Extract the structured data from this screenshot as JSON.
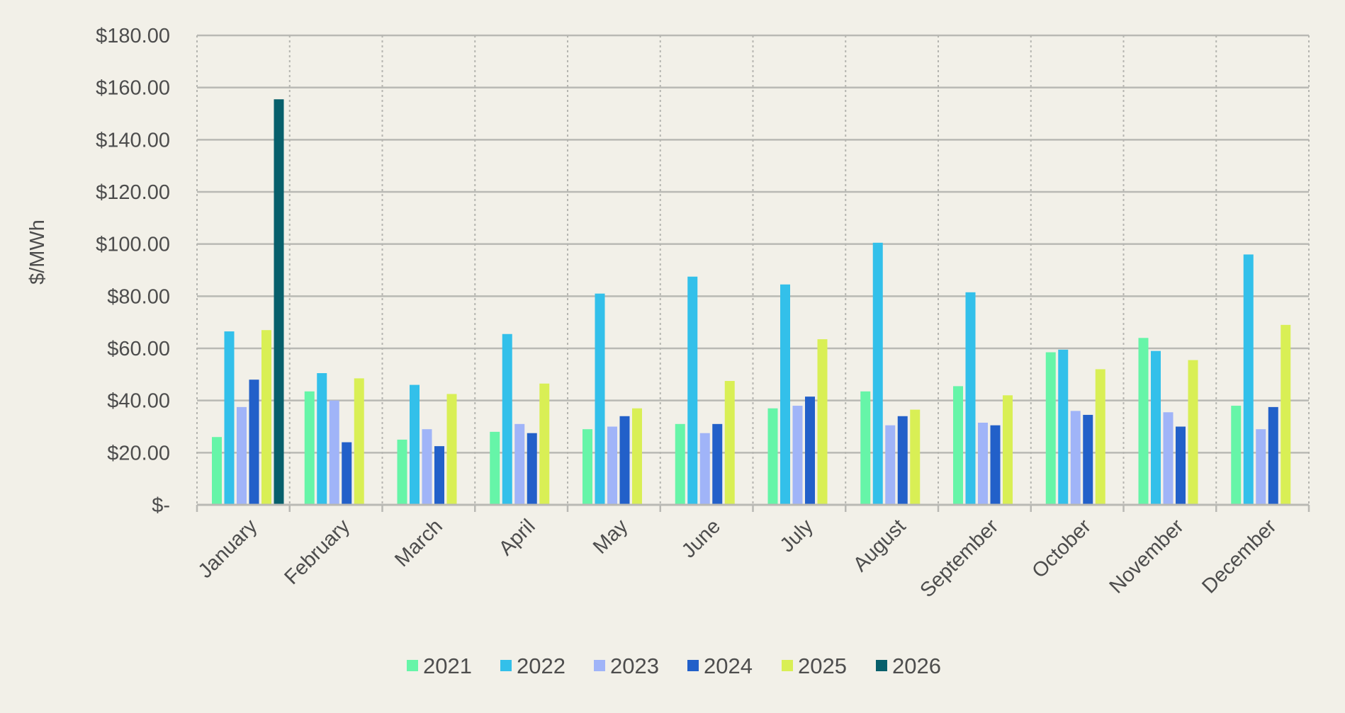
{
  "chart_data": {
    "type": "bar",
    "title": "",
    "xlabel": "",
    "ylabel": "$/MWh",
    "ylim": [
      0,
      180
    ],
    "yticks": [
      {
        "value": 0,
        "label": "$-"
      },
      {
        "value": 20,
        "label": "$20.00"
      },
      {
        "value": 40,
        "label": "$40.00"
      },
      {
        "value": 60,
        "label": "$60.00"
      },
      {
        "value": 80,
        "label": "$80.00"
      },
      {
        "value": 100,
        "label": "$100.00"
      },
      {
        "value": 120,
        "label": "$120.00"
      },
      {
        "value": 140,
        "label": "$140.00"
      },
      {
        "value": 160,
        "label": "$160.00"
      },
      {
        "value": 180,
        "label": "$180.00"
      }
    ],
    "grid": true,
    "legend_position": "bottom",
    "categories": [
      "January",
      "February",
      "March",
      "April",
      "May",
      "June",
      "July",
      "August",
      "September",
      "October",
      "November",
      "December"
    ],
    "series": [
      {
        "name": "2021",
        "color": "#66f5a8",
        "values": [
          26,
          43.5,
          25,
          28,
          29,
          31,
          37,
          43.5,
          45.5,
          58.5,
          64,
          38
        ]
      },
      {
        "name": "2022",
        "color": "#33c0ea",
        "values": [
          66.5,
          50.5,
          46,
          65.5,
          81,
          87.5,
          84.5,
          100.5,
          81.5,
          59.5,
          59,
          96
        ]
      },
      {
        "name": "2023",
        "color": "#a0b4f8",
        "values": [
          37.5,
          40,
          29,
          31,
          30,
          27.5,
          38,
          30.5,
          31.5,
          36,
          35.5,
          29
        ]
      },
      {
        "name": "2024",
        "color": "#2260c9",
        "values": [
          48,
          24,
          22.5,
          27.5,
          34,
          31,
          41.5,
          34,
          30.5,
          34.5,
          30,
          37.5
        ]
      },
      {
        "name": "2025",
        "color": "#d9ef55",
        "values": [
          67,
          48.5,
          42.5,
          46.5,
          37,
          47.5,
          63.5,
          36.5,
          42,
          52,
          55.5,
          69
        ]
      },
      {
        "name": "2026",
        "color": "#075f6b",
        "values": [
          155.5,
          null,
          null,
          null,
          null,
          null,
          null,
          null,
          null,
          null,
          null,
          null
        ]
      }
    ]
  }
}
